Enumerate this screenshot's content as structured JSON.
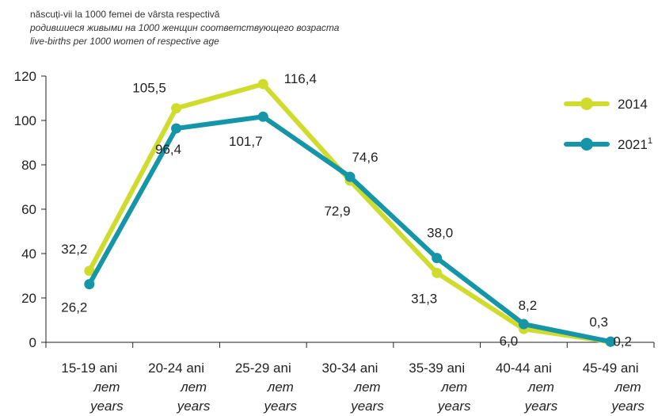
{
  "header": {
    "line1": "născuți-vii la 1000 femei de vârsta respectivă",
    "line2": "родившиеся живыми на 1000 женщин соответствующего возраста",
    "line3": "live-births per 1000 women of respective age"
  },
  "chart_data": {
    "type": "line",
    "categories": [
      {
        "ro": "15-19 ani",
        "ru": "лет",
        "en": "years"
      },
      {
        "ro": "20-24 ani",
        "ru": "лет",
        "en": "years"
      },
      {
        "ro": "25-29 ani",
        "ru": "лет",
        "en": "years"
      },
      {
        "ro": "30-34 ani",
        "ru": "лет",
        "en": "years"
      },
      {
        "ro": "35-39 ani",
        "ru": "лет",
        "en": "years"
      },
      {
        "ro": "40-44 ani",
        "ru": "лет",
        "en": "years"
      },
      {
        "ro": "45-49 ani",
        "ru": "лет",
        "en": "years"
      }
    ],
    "series": [
      {
        "name": "2014",
        "name_sup": "",
        "color": "#cfdc2e",
        "values": [
          32.2,
          105.5,
          116.4,
          72.9,
          31.3,
          6.0,
          0.2
        ],
        "labels": [
          "32,2",
          "105,5",
          "116,4",
          "72,9",
          "31,3",
          "6,0",
          "0,2"
        ]
      },
      {
        "name": "2021",
        "name_sup": "1",
        "color": "#1595a8",
        "values": [
          26.2,
          96.4,
          101.7,
          74.6,
          38.0,
          8.2,
          0.3
        ],
        "labels": [
          "26,2",
          "96,4",
          "101,7",
          "74,6",
          "38,0",
          "8,2",
          "0,3"
        ]
      }
    ],
    "ylim": [
      0,
      120
    ],
    "yticks": [
      "0",
      "20",
      "40",
      "60",
      "80",
      "100",
      "120"
    ],
    "legend_position": "right"
  }
}
